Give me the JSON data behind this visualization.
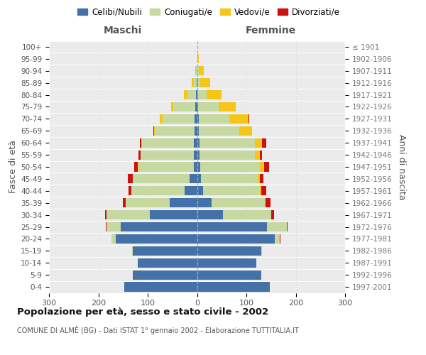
{
  "age_groups": [
    "0-4",
    "5-9",
    "10-14",
    "15-19",
    "20-24",
    "25-29",
    "30-34",
    "35-39",
    "40-44",
    "45-49",
    "50-54",
    "55-59",
    "60-64",
    "65-69",
    "70-74",
    "75-79",
    "80-84",
    "85-89",
    "90-94",
    "95-99",
    "100+"
  ],
  "birth_years": [
    "1997-2001",
    "1992-1996",
    "1987-1991",
    "1982-1986",
    "1977-1981",
    "1972-1976",
    "1967-1971",
    "1962-1966",
    "1957-1961",
    "1952-1956",
    "1947-1951",
    "1942-1946",
    "1937-1941",
    "1932-1936",
    "1927-1931",
    "1922-1926",
    "1917-1921",
    "1912-1916",
    "1907-1911",
    "1902-1906",
    "≤ 1901"
  ],
  "maschi": {
    "celibi": [
      148,
      130,
      120,
      130,
      165,
      155,
      95,
      55,
      25,
      15,
      7,
      6,
      6,
      5,
      5,
      3,
      2,
      1,
      0,
      0,
      0
    ],
    "coniugati": [
      0,
      0,
      0,
      2,
      8,
      28,
      88,
      90,
      108,
      115,
      112,
      108,
      105,
      80,
      65,
      45,
      18,
      6,
      2,
      0,
      0
    ],
    "vedovi": [
      0,
      0,
      0,
      0,
      0,
      0,
      0,
      0,
      0,
      0,
      1,
      1,
      2,
      2,
      5,
      5,
      6,
      4,
      1,
      0,
      0
    ],
    "divorziati": [
      0,
      0,
      0,
      0,
      1,
      2,
      4,
      5,
      6,
      10,
      7,
      4,
      3,
      1,
      1,
      0,
      0,
      0,
      0,
      0,
      0
    ]
  },
  "femmine": {
    "nubili": [
      148,
      130,
      120,
      130,
      158,
      142,
      52,
      30,
      12,
      8,
      6,
      5,
      5,
      4,
      3,
      2,
      1,
      1,
      0,
      0,
      0
    ],
    "coniugate": [
      0,
      0,
      0,
      2,
      10,
      40,
      98,
      108,
      115,
      115,
      122,
      112,
      112,
      82,
      62,
      42,
      18,
      6,
      3,
      1,
      0
    ],
    "vedove": [
      0,
      0,
      0,
      0,
      0,
      0,
      1,
      1,
      3,
      5,
      8,
      10,
      15,
      25,
      40,
      35,
      30,
      20,
      10,
      2,
      0
    ],
    "divorziate": [
      0,
      0,
      0,
      0,
      1,
      2,
      5,
      10,
      10,
      6,
      10,
      4,
      8,
      1,
      1,
      0,
      0,
      0,
      0,
      0,
      0
    ]
  },
  "colors": {
    "celibi_nubili": "#4472a8",
    "coniugati": "#c5d9a0",
    "vedovi": "#f5c518",
    "divorziati": "#cc1111"
  },
  "xlim": 300,
  "title": "Popolazione per età, sesso e stato civile - 2002",
  "subtitle": "COMUNE DI ALMÈ (BG) - Dati ISTAT 1° gennaio 2002 - Elaborazione TUTTITALIA.IT",
  "header_left": "Maschi",
  "header_right": "Femmine",
  "ylabel_left": "Fasce di età",
  "ylabel_right": "Anni di nascita",
  "bg_color": "#ffffff",
  "plot_bg": "#ebebeb",
  "grid_color": "#ffffff"
}
